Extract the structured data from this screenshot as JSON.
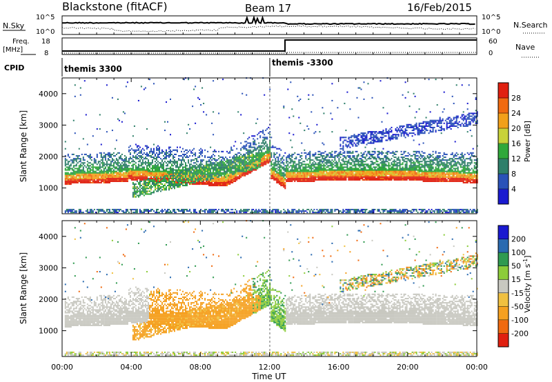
{
  "header": {
    "title": "Blackstone (fitACF)",
    "beam": "Beam 17",
    "date": "16/Feb/2015"
  },
  "top_panels": {
    "nsky_label": "N.Sky",
    "nsky_ticks": [
      "10^5",
      "10^0"
    ],
    "nsearch_label": "N.Search",
    "nsearch_ticks": [
      "10^5",
      "10^0"
    ],
    "freq_label": "Freq.",
    "freq_unit": "[MHz]",
    "freq_ticks": [
      "18",
      "8"
    ],
    "nave_label": "Nave",
    "nave_ticks": [
      "60",
      "0"
    ],
    "cpid_label": "CPID",
    "cpid_segments": [
      {
        "label": "themis 3300",
        "start_hour": 0
      },
      {
        "label": "themis -3300",
        "start_hour": 12
      }
    ]
  },
  "colorbars": {
    "power": {
      "label": "Power [dB]",
      "ticks": [
        "4",
        "8",
        "12",
        "16",
        "20",
        "24",
        "28"
      ],
      "colors": [
        "#1a1ad0",
        "#2a52b8",
        "#2f7f6a",
        "#2fa83a",
        "#c8d23a",
        "#f2a01a",
        "#f06a10",
        "#e02010"
      ]
    },
    "velocity": {
      "label": "Velocity [m s",
      "label_sup": "-1",
      "label_close": "]",
      "ticks": [
        "-200",
        "-100",
        "-50",
        "-15",
        "15",
        "50",
        "100",
        "200"
      ],
      "colors": [
        "#e02010",
        "#f06a10",
        "#f5a020",
        "#f0c040",
        "#c8c8c0",
        "#8ccc3a",
        "#2f9a50",
        "#2a6ab0",
        "#1a1ad0"
      ]
    }
  },
  "chart_data": [
    {
      "type": "heatmap",
      "name": "power-panel",
      "ylabel": "Slant Range [km]",
      "yticks": [
        "1000",
        "2000",
        "3000",
        "4000"
      ],
      "ylim": [
        180,
        4500
      ],
      "xlim": [
        0,
        24
      ],
      "zlabel": "Power [dB]",
      "zlim": [
        0,
        30
      ],
      "bands": [
        {
          "x_start": 0.2,
          "x_end": 3.8,
          "range_start": 1000,
          "range_end": 2200,
          "peak_power": 26
        },
        {
          "x_start": 3.8,
          "x_end": 11.8,
          "range_start": 600,
          "range_end": 2600,
          "peak_power": 14
        },
        {
          "x_start": 9.5,
          "x_end": 12.0,
          "range_start": 1000,
          "range_end": 2500,
          "peak_power": 22
        },
        {
          "x_start": 12.9,
          "x_end": 24.0,
          "range_start": 1100,
          "range_end": 2200,
          "peak_power": 26
        },
        {
          "x_start": 16.5,
          "x_end": 24.0,
          "range_start": 2400,
          "range_end": 3200,
          "peak_power": 6
        }
      ]
    },
    {
      "type": "heatmap",
      "name": "velocity-panel",
      "ylabel": "Slant Range [km]",
      "yticks": [
        "1000",
        "2000",
        "3000",
        "4000"
      ],
      "ylim": [
        180,
        4500
      ],
      "xlim": [
        0,
        24
      ],
      "xlabel": "Time UT",
      "xticks": [
        "00:00",
        "04:00",
        "08:00",
        "12:00",
        "16:00",
        "20:00",
        "00:00"
      ],
      "zlabel": "Velocity [m s-1]",
      "zlim": [
        -200,
        200
      ]
    }
  ]
}
